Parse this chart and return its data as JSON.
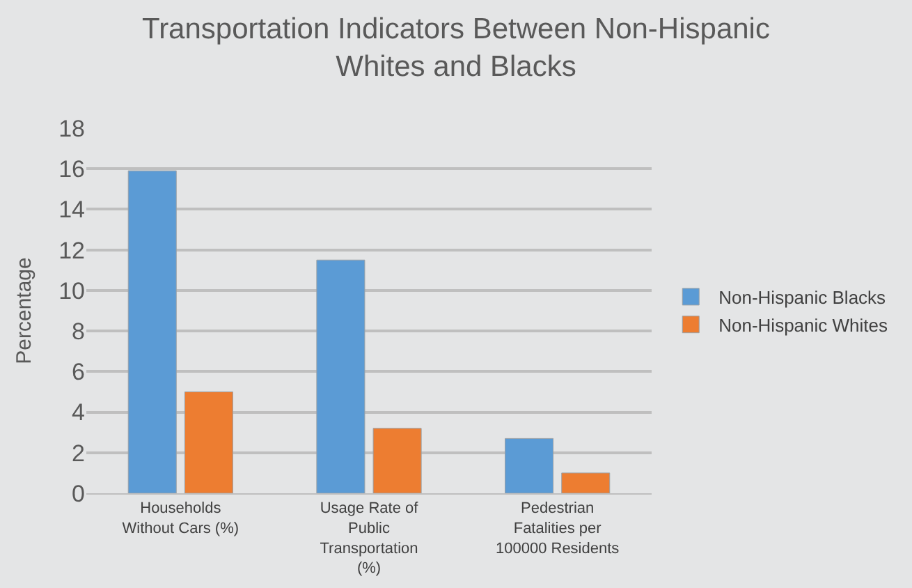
{
  "chart_data": {
    "type": "bar",
    "title": "Transportation Indicators Between Non-Hispanic Whites and Blacks",
    "ylabel": "Percentage",
    "categories": [
      "Households Without Cars (%)",
      "Usage Rate of Public Transportation (%)",
      "Pedestrian Fatalities per 100000 Residents"
    ],
    "series": [
      {
        "name": "Non-Hispanic Blacks",
        "color": "#5b9bd5",
        "values": [
          15.9,
          11.5,
          2.7
        ]
      },
      {
        "name": "Non-Hispanic Whites",
        "color": "#ed7d31",
        "values": [
          5.0,
          3.2,
          1.0
        ]
      }
    ],
    "ylim": [
      0,
      18
    ],
    "yticks": [
      0,
      2,
      4,
      6,
      8,
      10,
      12,
      14,
      16,
      18
    ],
    "grid": "y",
    "legend": "right"
  }
}
